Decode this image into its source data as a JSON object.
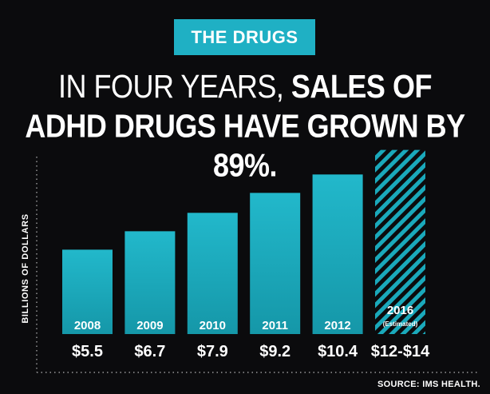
{
  "header": {
    "badge": "THE DRUGS",
    "headline_line1_light": "IN FOUR YEARS, ",
    "headline_line1_bold": "SALES OF",
    "headline_line2": "ADHD DRUGS HAVE GROWN BY 89%."
  },
  "source": "SOURCE: IMS HEALTH.",
  "colors": {
    "background": "#0b0b0d",
    "bar": "#1aa9bb",
    "bar_light": "#2cc3d6",
    "badge": "#1fb0c4",
    "text": "#ffffff"
  },
  "chart_data": {
    "type": "bar",
    "ylabel": "BILLIONS OF DOLLARS",
    "categories": [
      "2008",
      "2009",
      "2010",
      "2011",
      "2012",
      "2016"
    ],
    "category_notes": [
      "",
      "",
      "",
      "",
      "",
      "(Estimated)"
    ],
    "values": [
      5.5,
      6.7,
      7.9,
      9.2,
      10.4,
      12
    ],
    "value_labels": [
      "$5.5",
      "$6.7",
      "$7.9",
      "$9.2",
      "$10.4",
      "$12-$14"
    ],
    "estimated": [
      false,
      false,
      false,
      false,
      false,
      true
    ],
    "ylim": [
      0,
      12.5
    ],
    "grid": false
  }
}
